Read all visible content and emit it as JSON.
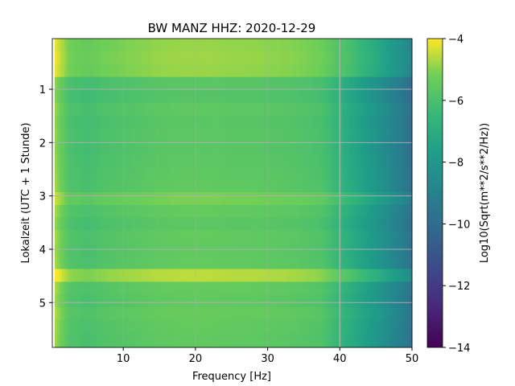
{
  "chart_data": {
    "type": "heatmap",
    "title": "BW MANZ  HHZ: 2020-12-29",
    "xlabel": "Frequency [Hz]",
    "ylabel": "Lokalzeit (UTC + 1 Stunde)",
    "xlim": [
      0.17,
      50
    ],
    "ylim": [
      5.84,
      0.05
    ],
    "y_inverted": true,
    "xticks": [
      10,
      20,
      30,
      40,
      50
    ],
    "yticks": [
      1,
      2,
      3,
      4,
      5
    ],
    "grid": true,
    "colormap": "viridis",
    "colorbar": {
      "label": "Log10(Sqrt(m**2/s**2/Hz))",
      "range": [
        -14,
        -4
      ],
      "ticks": [
        -4,
        -6,
        -8,
        -10,
        -12,
        -14
      ]
    },
    "freq_bins_hz": [
      0.5,
      2.5,
      5,
      7.5,
      10,
      12.5,
      15,
      17.5,
      20,
      22.5,
      25,
      27.5,
      30,
      32.5,
      35,
      37.5,
      40,
      42.5,
      45,
      47.5,
      50
    ],
    "freq_profile": [
      -4.4,
      -5.5,
      -5.7,
      -5.5,
      -5.4,
      -5.3,
      -5.2,
      -5.15,
      -5.15,
      -5.15,
      -5.2,
      -5.2,
      -5.25,
      -5.3,
      -5.4,
      -5.55,
      -6.2,
      -6.9,
      -7.6,
      -8.4,
      -9.3
    ],
    "time_rows_h": [
      0.05,
      0.29,
      0.53,
      0.77,
      1.01,
      1.25,
      1.49,
      1.73,
      1.97,
      2.21,
      2.45,
      2.69,
      2.93,
      3.17,
      3.41,
      3.65,
      3.89,
      4.13,
      4.37,
      4.61,
      4.85,
      5.09,
      5.33,
      5.57
    ],
    "time_offsets": [
      0.3,
      0.35,
      0.3,
      -0.5,
      -0.6,
      -0.4,
      -0.5,
      -0.45,
      -0.5,
      -0.45,
      -0.4,
      -0.35,
      0.05,
      -0.3,
      -0.45,
      -0.3,
      -0.35,
      -0.3,
      0.6,
      -0.25,
      -0.35,
      -0.2,
      -0.3,
      -0.35
    ]
  }
}
